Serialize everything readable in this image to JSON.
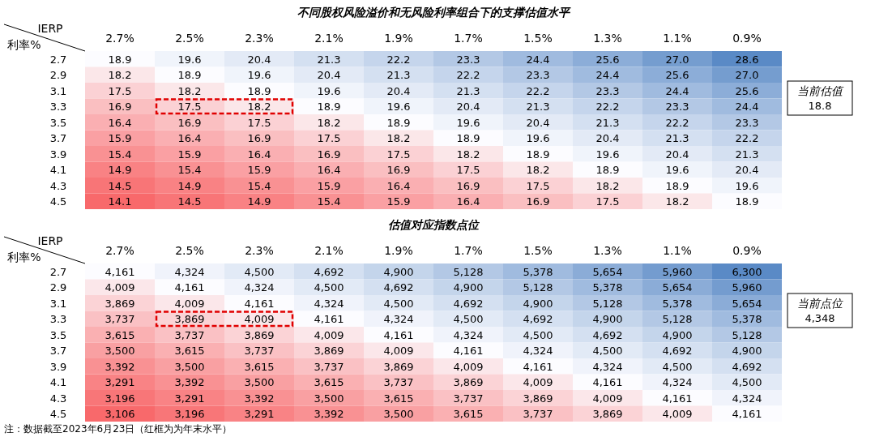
{
  "chart_data": [
    {
      "type": "heatmap",
      "title": "不同股权风险溢价和无风险利率组合下的支撑估值水平",
      "xlabel": "IERP",
      "ylabel": "利率%",
      "categories": [
        "2.7%",
        "2.5%",
        "2.3%",
        "2.1%",
        "1.9%",
        "1.7%",
        "1.5%",
        "1.3%",
        "1.1%",
        "0.9%"
      ],
      "y_categories": [
        "2.7",
        "2.9",
        "3.1",
        "3.3",
        "3.5",
        "3.7",
        "3.9",
        "4.1",
        "4.3",
        "4.5"
      ],
      "colors": [
        "#f8696b",
        "#fcfcff",
        "#5a8ac6"
      ],
      "cells": [
        [
          18.9,
          19.6,
          20.4,
          21.3,
          22.2,
          23.3,
          24.4,
          25.6,
          27.0,
          28.6
        ],
        [
          18.2,
          18.9,
          19.6,
          20.4,
          21.3,
          22.2,
          23.3,
          24.4,
          25.6,
          27.0
        ],
        [
          17.5,
          18.2,
          18.9,
          19.6,
          20.4,
          21.3,
          22.2,
          23.3,
          24.4,
          25.6
        ],
        [
          16.9,
          17.5,
          18.2,
          18.9,
          19.6,
          20.4,
          21.3,
          22.2,
          23.3,
          24.4
        ],
        [
          16.4,
          16.9,
          17.5,
          18.2,
          18.9,
          19.6,
          20.4,
          21.3,
          22.2,
          23.3
        ],
        [
          15.9,
          16.4,
          16.9,
          17.5,
          18.2,
          18.9,
          19.6,
          20.4,
          21.3,
          22.2
        ],
        [
          15.4,
          15.9,
          16.4,
          16.9,
          17.5,
          18.2,
          18.9,
          19.6,
          20.4,
          21.3
        ],
        [
          14.9,
          15.4,
          15.9,
          16.4,
          16.9,
          17.5,
          18.2,
          18.9,
          19.6,
          20.4
        ],
        [
          14.5,
          14.9,
          15.4,
          15.9,
          16.4,
          16.9,
          17.5,
          18.2,
          18.9,
          19.6
        ],
        [
          14.1,
          14.5,
          14.9,
          15.4,
          15.9,
          16.4,
          16.9,
          17.5,
          18.2,
          18.9
        ]
      ],
      "cell_labels": [
        [
          "18.9",
          "19.6",
          "20.4",
          "21.3",
          "22.2",
          "23.3",
          "24.4",
          "25.6",
          "27.0",
          "28.6"
        ],
        [
          "18.2",
          "18.9",
          "19.6",
          "20.4",
          "21.3",
          "22.2",
          "23.3",
          "24.4",
          "25.6",
          "27.0"
        ],
        [
          "17.5",
          "18.2",
          "18.9",
          "19.6",
          "20.4",
          "21.3",
          "22.2",
          "23.3",
          "24.4",
          "25.6"
        ],
        [
          "16.9",
          "17.5",
          "18.2",
          "18.9",
          "19.6",
          "20.4",
          "21.3",
          "22.2",
          "23.3",
          "24.4"
        ],
        [
          "16.4",
          "16.9",
          "17.5",
          "18.2",
          "18.9",
          "19.6",
          "20.4",
          "21.3",
          "22.2",
          "23.3"
        ],
        [
          "15.9",
          "16.4",
          "16.9",
          "17.5",
          "18.2",
          "18.9",
          "19.6",
          "20.4",
          "21.3",
          "22.2"
        ],
        [
          "15.4",
          "15.9",
          "16.4",
          "16.9",
          "17.5",
          "18.2",
          "18.9",
          "19.6",
          "20.4",
          "21.3"
        ],
        [
          "14.9",
          "15.4",
          "15.9",
          "16.4",
          "16.9",
          "17.5",
          "18.2",
          "18.9",
          "19.6",
          "20.4"
        ],
        [
          "14.5",
          "14.9",
          "15.4",
          "15.9",
          "16.4",
          "16.9",
          "17.5",
          "18.2",
          "18.9",
          "19.6"
        ],
        [
          "14.1",
          "14.5",
          "14.9",
          "15.4",
          "15.9",
          "16.4",
          "16.9",
          "17.5",
          "18.2",
          "18.9"
        ]
      ],
      "annotations": [
        "当前估值\n18.8"
      ]
    },
    {
      "type": "heatmap",
      "title": "估值对应指数点位",
      "xlabel": "IERP",
      "ylabel": "利率%",
      "categories": [
        "2.7%",
        "2.5%",
        "2.3%",
        "2.1%",
        "1.9%",
        "1.7%",
        "1.5%",
        "1.3%",
        "1.1%",
        "0.9%"
      ],
      "y_categories": [
        "2.7",
        "2.9",
        "3.1",
        "3.3",
        "3.5",
        "3.7",
        "3.9",
        "4.1",
        "4.3",
        "4.5"
      ],
      "colors": [
        "#f8696b",
        "#fcfcff",
        "#5a8ac6"
      ],
      "cells": [
        [
          4161,
          4324,
          4500,
          4692,
          4900,
          5128,
          5378,
          5654,
          5960,
          6300
        ],
        [
          4009,
          4161,
          4324,
          4500,
          4692,
          4900,
          5128,
          5378,
          5654,
          5960
        ],
        [
          3869,
          4009,
          4161,
          4324,
          4500,
          4692,
          4900,
          5128,
          5378,
          5654
        ],
        [
          3737,
          3869,
          4009,
          4161,
          4324,
          4500,
          4692,
          4900,
          5128,
          5378
        ],
        [
          3615,
          3737,
          3869,
          4009,
          4161,
          4324,
          4500,
          4692,
          4900,
          5128
        ],
        [
          3500,
          3615,
          3737,
          3869,
          4009,
          4161,
          4324,
          4500,
          4692,
          4900
        ],
        [
          3392,
          3500,
          3615,
          3737,
          3869,
          4009,
          4161,
          4324,
          4500,
          4692
        ],
        [
          3291,
          3392,
          3500,
          3615,
          3737,
          3869,
          4009,
          4161,
          4324,
          4500
        ],
        [
          3196,
          3291,
          3392,
          3500,
          3615,
          3737,
          3869,
          4009,
          4161,
          4324
        ],
        [
          3106,
          3196,
          3291,
          3392,
          3500,
          3615,
          3737,
          3869,
          4009,
          4161
        ]
      ],
      "cell_labels": [
        [
          "4,161",
          "4,324",
          "4,500",
          "4,692",
          "4,900",
          "5,128",
          "5,378",
          "5,654",
          "5,960",
          "6,300"
        ],
        [
          "4,009",
          "4,161",
          "4,324",
          "4,500",
          "4,692",
          "4,900",
          "5,128",
          "5,378",
          "5,654",
          "5,960"
        ],
        [
          "3,869",
          "4,009",
          "4,161",
          "4,324",
          "4,500",
          "4,692",
          "4,900",
          "5,128",
          "5,378",
          "5,654"
        ],
        [
          "3,737",
          "3,869",
          "4,009",
          "4,161",
          "4,324",
          "4,500",
          "4,692",
          "4,900",
          "5,128",
          "5,378"
        ],
        [
          "3,615",
          "3,737",
          "3,869",
          "4,009",
          "4,161",
          "4,324",
          "4,500",
          "4,692",
          "4,900",
          "5,128"
        ],
        [
          "3,500",
          "3,615",
          "3,737",
          "3,869",
          "4,009",
          "4,161",
          "4,324",
          "4,500",
          "4,692",
          "4,900"
        ],
        [
          "3,392",
          "3,500",
          "3,615",
          "3,737",
          "3,869",
          "4,009",
          "4,161",
          "4,324",
          "4,500",
          "4,692"
        ],
        [
          "3,291",
          "3,392",
          "3,500",
          "3,615",
          "3,737",
          "3,869",
          "4,009",
          "4,161",
          "4,324",
          "4,500"
        ],
        [
          "3,196",
          "3,291",
          "3,392",
          "3,500",
          "3,615",
          "3,737",
          "3,869",
          "4,009",
          "4,161",
          "4,324"
        ],
        [
          "3,106",
          "3,196",
          "3,291",
          "3,392",
          "3,500",
          "3,615",
          "3,737",
          "3,869",
          "4,009",
          "4,161"
        ]
      ],
      "annotations": [
        "当前点位\n4,348",
        "注：数据截至2023年6月23日（红框为为年末水平）"
      ]
    }
  ]
}
